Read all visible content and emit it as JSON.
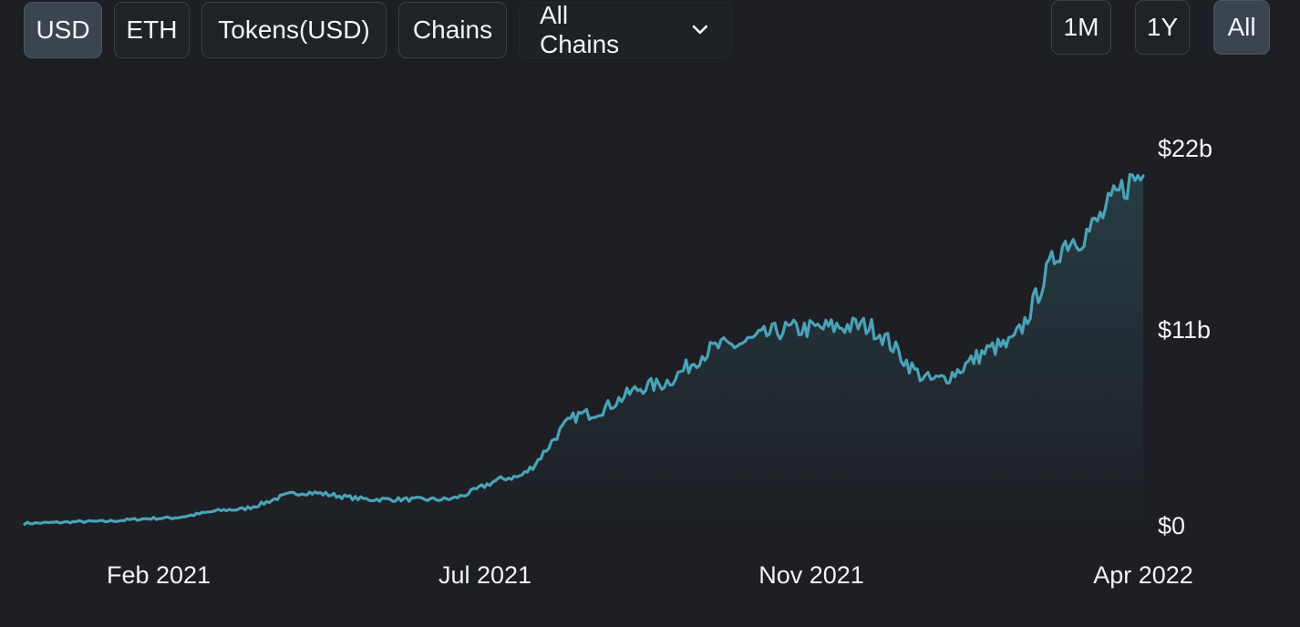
{
  "toolbar": {
    "denominations": [
      {
        "label": "USD",
        "active": true
      },
      {
        "label": "ETH",
        "active": false
      },
      {
        "label": "Tokens(USD)",
        "active": false
      },
      {
        "label": "Chains",
        "active": false
      }
    ],
    "chain_select": {
      "value": "All Chains",
      "icon": "chevron-down-icon"
    },
    "ranges": [
      {
        "label": "1M",
        "active": false
      },
      {
        "label": "1Y",
        "active": false
      },
      {
        "label": "All",
        "active": true
      }
    ]
  },
  "colors": {
    "line": "#4aa3b8",
    "background": "#1d1f24",
    "active_button": "#3a4550"
  },
  "chart_data": {
    "type": "area",
    "x_ticks": [
      "Feb 2021",
      "Jul 2021",
      "Nov 2021",
      "Apr 2022"
    ],
    "y_ticks": [
      "$0",
      "$11b",
      "$22b"
    ],
    "ylim": [
      0,
      22
    ],
    "y_unit": "$b",
    "x": [
      "2020-12",
      "2021-01",
      "2021-02",
      "2021-03",
      "2021-04",
      "2021-05",
      "2021-06",
      "2021-07",
      "2021-08",
      "2021-09",
      "2021-10",
      "2021-11",
      "2021-12",
      "2022-01",
      "2022-02",
      "2022-03",
      "2022-04"
    ],
    "values": [
      0.1,
      0.2,
      0.4,
      0.9,
      1.9,
      1.5,
      1.5,
      2.8,
      6.5,
      8.2,
      10.5,
      11.5,
      11.7,
      8.5,
      10.5,
      16.8,
      20.5
    ]
  }
}
